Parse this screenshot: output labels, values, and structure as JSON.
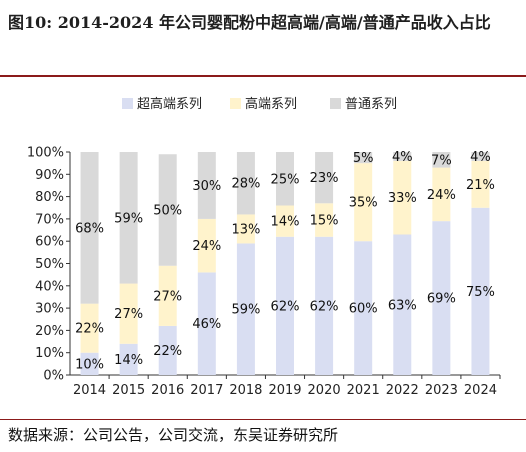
{
  "figure": {
    "title": "图10:  2014-2024  年公司婴配粉中超高端/高端/普通产品收入占比",
    "source": "数据来源：公司公告，公司交流，东吴证券研究所"
  },
  "chart_data": {
    "type": "bar",
    "stacked": true,
    "categories": [
      "2014",
      "2015",
      "2016",
      "2017",
      "2018",
      "2019",
      "2020",
      "2021",
      "2022",
      "2023",
      "2024"
    ],
    "series": [
      {
        "name": "超高端系列",
        "color": "#d9def2",
        "values": [
          10,
          14,
          22,
          46,
          59,
          62,
          62,
          60,
          63,
          69,
          75
        ]
      },
      {
        "name": "高端系列",
        "color": "#fff3cc",
        "values": [
          22,
          27,
          27,
          24,
          13,
          14,
          15,
          35,
          33,
          24,
          21
        ]
      },
      {
        "name": "普通系列",
        "color": "#d9d9d9",
        "values": [
          68,
          59,
          50,
          30,
          28,
          25,
          23,
          5,
          4,
          7,
          4
        ]
      }
    ],
    "ylim": [
      0,
      100
    ],
    "yticks": [
      "0%",
      "10%",
      "20%",
      "30%",
      "40%",
      "50%",
      "60%",
      "70%",
      "80%",
      "90%",
      "100%"
    ],
    "legend_position": "top",
    "grid": false
  }
}
